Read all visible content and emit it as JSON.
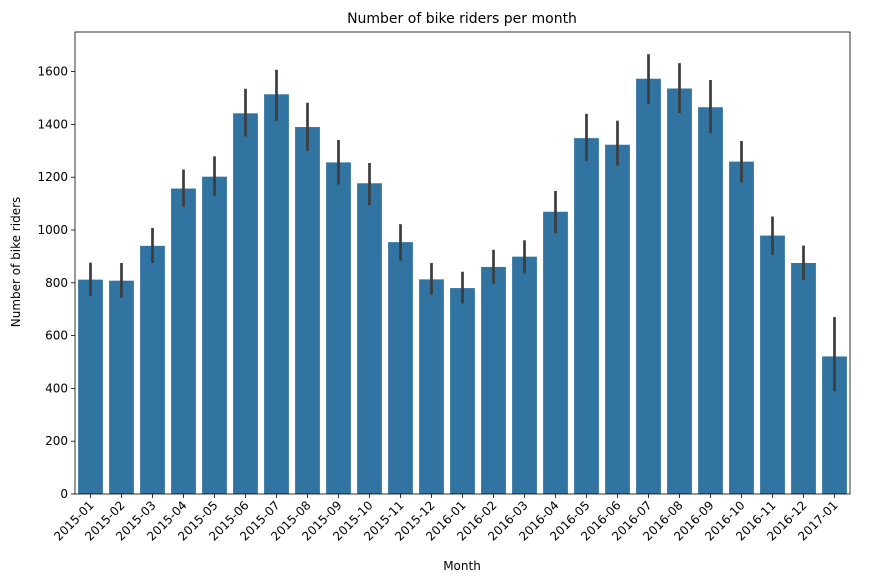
{
  "colors": {
    "bar": "#3274a1",
    "error_bar": "#3c3c3c",
    "axis": "#000000",
    "background": "#ffffff"
  },
  "chart_data": {
    "type": "bar",
    "title": "Number of bike riders per month",
    "xlabel": "Month",
    "ylabel": "Number of bike riders",
    "ylim": [
      0,
      1750
    ],
    "yticks": [
      0,
      200,
      400,
      600,
      800,
      1000,
      1200,
      1400,
      1600
    ],
    "grid": false,
    "categories": [
      "2015-01",
      "2015-02",
      "2015-03",
      "2015-04",
      "2015-05",
      "2015-06",
      "2015-07",
      "2015-08",
      "2015-09",
      "2015-10",
      "2015-11",
      "2015-12",
      "2016-01",
      "2016-02",
      "2016-03",
      "2016-04",
      "2016-05",
      "2016-06",
      "2016-07",
      "2016-08",
      "2016-09",
      "2016-10",
      "2016-11",
      "2016-12",
      "2017-01"
    ],
    "values": [
      812,
      808,
      940,
      1157,
      1202,
      1442,
      1514,
      1390,
      1256,
      1177,
      954,
      813,
      780,
      860,
      899,
      1069,
      1348,
      1323,
      1573,
      1536,
      1465,
      1259,
      979,
      875,
      521
    ],
    "error_low": [
      750,
      743,
      875,
      1088,
      1128,
      1354,
      1413,
      1300,
      1172,
      1094,
      884,
      755,
      722,
      797,
      835,
      988,
      1262,
      1244,
      1478,
      1443,
      1367,
      1180,
      906,
      810,
      389
    ],
    "error_high": [
      876,
      875,
      1008,
      1229,
      1279,
      1535,
      1607,
      1482,
      1341,
      1254,
      1022,
      875,
      842,
      925,
      961,
      1148,
      1440,
      1414,
      1666,
      1632,
      1568,
      1337,
      1051,
      941,
      670
    ]
  }
}
